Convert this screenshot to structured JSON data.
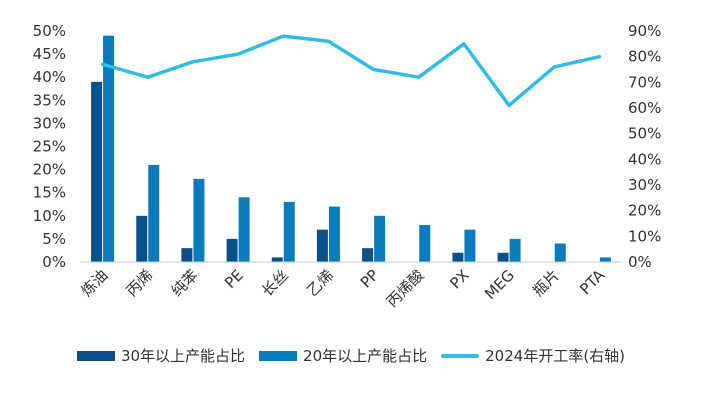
{
  "chart_data": {
    "type": "bar",
    "title": "",
    "xlabel": "",
    "ylabel": "",
    "categories": [
      "炼油",
      "丙烯",
      "纯苯",
      "PE",
      "长丝",
      "乙烯",
      "PP",
      "丙烯酸",
      "PX",
      "MEG",
      "瓶片",
      "PTA"
    ],
    "ylim_left": [
      0,
      50
    ],
    "ylim_right": [
      0,
      90
    ],
    "left_ticks": [
      "0%",
      "5%",
      "10%",
      "15%",
      "20%",
      "25%",
      "30%",
      "35%",
      "40%",
      "45%",
      "50%"
    ],
    "right_ticks": [
      "0%",
      "10%",
      "20%",
      "30%",
      "40%",
      "50%",
      "60%",
      "70%",
      "80%",
      "90%"
    ],
    "series": [
      {
        "name": "30年以上产能占比",
        "kind": "bar",
        "axis": "left",
        "color": "#0b4f8c",
        "values": [
          39,
          10,
          3,
          5,
          1,
          7,
          3,
          0,
          2,
          2,
          0,
          0
        ]
      },
      {
        "name": "20年以上产能占比",
        "kind": "bar",
        "axis": "left",
        "color": "#0a7bbd",
        "values": [
          49,
          21,
          18,
          14,
          13,
          12,
          10,
          8,
          7,
          5,
          4,
          1
        ]
      },
      {
        "name": "2024年开工率(右轴)",
        "kind": "line",
        "axis": "right",
        "color": "#2fbde6",
        "values": [
          77,
          72,
          78,
          81,
          88,
          86,
          75,
          72,
          85,
          61,
          76,
          80
        ]
      }
    ],
    "legend_position": "bottom",
    "grid": false
  }
}
